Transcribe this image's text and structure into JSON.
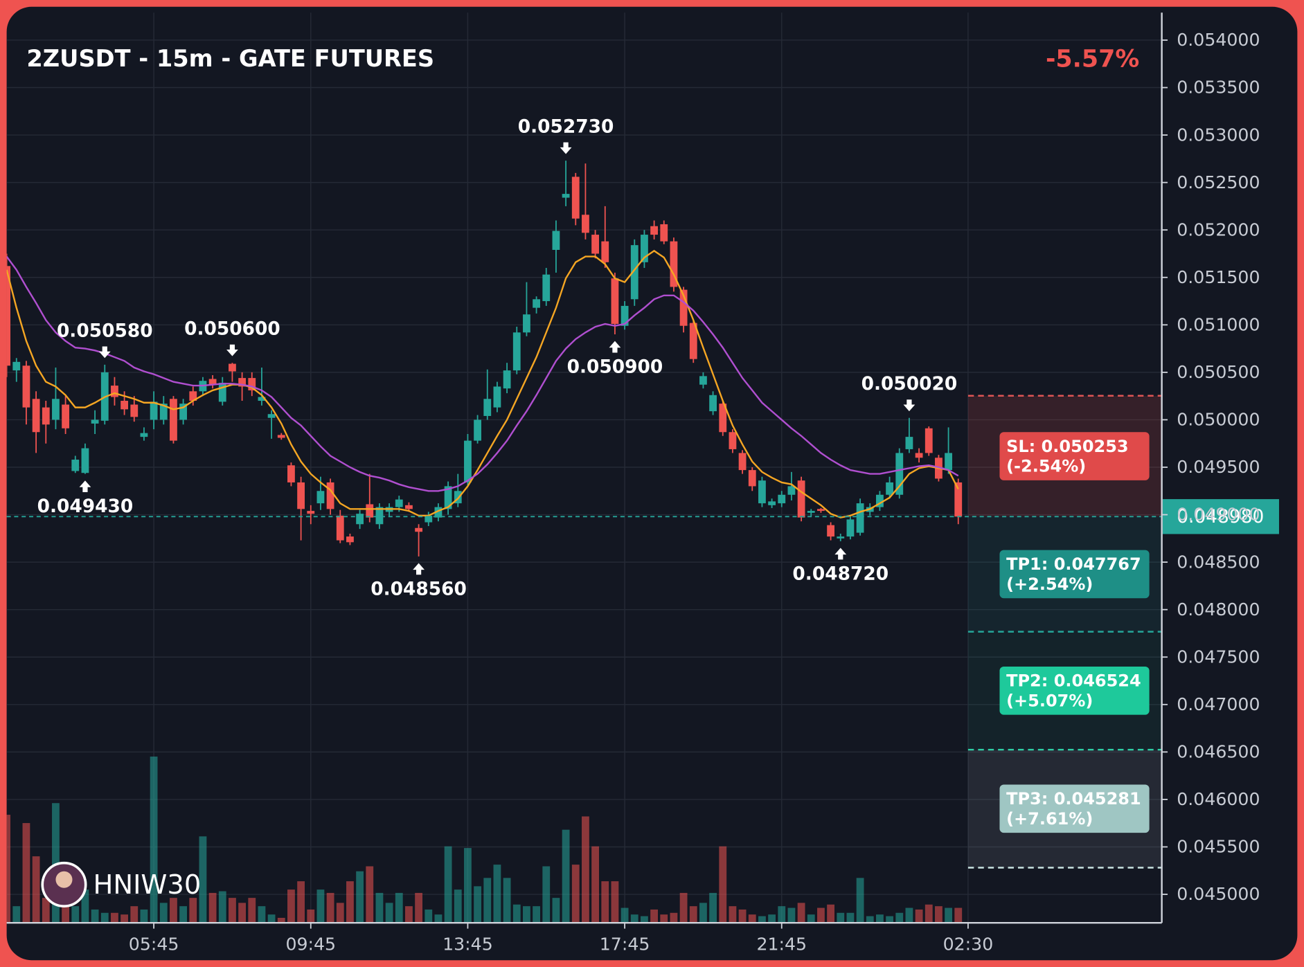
{
  "chart_data": {
    "type": "candlestick",
    "title": "2ZUSDT - 15m - GATE FUTURES",
    "change": "-5.57%",
    "watermark": "HNIW30",
    "up_color": "#26a69a",
    "down_color": "#ef5350",
    "xlim": [
      0,
      118
    ],
    "xticks": [
      {
        "value": 15,
        "label": "05:45"
      },
      {
        "value": 31,
        "label": "09:45"
      },
      {
        "value": 47,
        "label": "13:45"
      },
      {
        "value": 63,
        "label": "17:45"
      },
      {
        "value": 79,
        "label": "21:45"
      },
      {
        "value": 98,
        "label": "02:30"
      }
    ],
    "ylim": [
      0.0447,
      0.05429
    ],
    "yticks": [
      {
        "value": 0.045,
        "label": "0.045000"
      },
      {
        "value": 0.0455,
        "label": "0.045500"
      },
      {
        "value": 0.046,
        "label": "0.046000"
      },
      {
        "value": 0.0465,
        "label": "0.046500"
      },
      {
        "value": 0.047,
        "label": "0.047000"
      },
      {
        "value": 0.0475,
        "label": "0.047500"
      },
      {
        "value": 0.048,
        "label": "0.048000"
      },
      {
        "value": 0.0485,
        "label": "0.048500"
      },
      {
        "value": 0.049,
        "label": "0.049000"
      },
      {
        "value": 0.0495,
        "label": "0.049500"
      },
      {
        "value": 0.05,
        "label": "0.050000"
      },
      {
        "value": 0.0505,
        "label": "0.050500"
      },
      {
        "value": 0.051,
        "label": "0.051000"
      },
      {
        "value": 0.0515,
        "label": "0.051500"
      },
      {
        "value": 0.052,
        "label": "0.052000"
      },
      {
        "value": 0.0525,
        "label": "0.052500"
      },
      {
        "value": 0.053,
        "label": "0.053000"
      },
      {
        "value": 0.0535,
        "label": "0.053500"
      },
      {
        "value": 0.054,
        "label": "0.054000"
      }
    ],
    "grid": true,
    "open": [
      0.05162,
      0.05052,
      0.05057,
      0.05022,
      0.05013,
      0.05,
      0.05016,
      0.04946,
      0.04944,
      0.04996,
      0.04999,
      0.05036,
      0.0502,
      0.05016,
      0.04982,
      0.05,
      0.05,
      0.05022,
      0.05,
      0.0503,
      0.0503,
      0.05043,
      0.05019,
      0.05059,
      0.05044,
      0.05044,
      0.0502,
      0.05002,
      0.04984,
      0.04952,
      0.04934,
      0.04904,
      0.04912,
      0.04934,
      0.04899,
      0.04877,
      0.0489,
      0.04911,
      0.0489,
      0.04903,
      0.04908,
      0.0491,
      0.04886,
      0.04892,
      0.04897,
      0.04906,
      0.04912,
      0.04934,
      0.04978,
      0.05004,
      0.05013,
      0.05033,
      0.05052,
      0.05092,
      0.05118,
      0.05125,
      0.05179,
      0.05234,
      0.05256,
      0.05216,
      0.05195,
      0.05188,
      0.05149,
      0.05099,
      0.05127,
      0.05166,
      0.05204,
      0.05206,
      0.05188,
      0.05137,
      0.05102,
      0.05037,
      0.05009,
      0.05017,
      0.04987,
      0.04965,
      0.04947,
      0.04912,
      0.0491,
      0.04912,
      0.04921,
      0.04936,
      0.04902,
      0.04906,
      0.04889,
      0.04875,
      0.04877,
      0.04881,
      0.04903,
      0.04908,
      0.04921,
      0.04921,
      0.04969,
      0.04965,
      0.04991,
      0.0496,
      0.04947,
      0.04934
    ],
    "high": [
      0.05175,
      0.05065,
      0.05062,
      0.0503,
      0.0502,
      0.05055,
      0.05025,
      0.04962,
      0.04975,
      0.0501,
      0.05058,
      0.05045,
      0.0503,
      0.05025,
      0.04992,
      0.0503,
      0.05025,
      0.05025,
      0.05022,
      0.05035,
      0.05045,
      0.05047,
      0.05045,
      0.0506,
      0.0505,
      0.0505,
      0.05055,
      0.0501,
      0.04986,
      0.04955,
      0.0494,
      0.0491,
      0.0494,
      0.04938,
      0.04905,
      0.0488,
      0.04905,
      0.04943,
      0.04912,
      0.04912,
      0.0492,
      0.04913,
      0.0489,
      0.04903,
      0.04912,
      0.04935,
      0.04943,
      0.04985,
      0.05005,
      0.05053,
      0.0504,
      0.0506,
      0.05098,
      0.05145,
      0.0513,
      0.0516,
      0.0521,
      0.05273,
      0.0526,
      0.0527,
      0.052,
      0.05225,
      0.05155,
      0.05125,
      0.0519,
      0.052,
      0.0521,
      0.0521,
      0.05192,
      0.0514,
      0.05105,
      0.0505,
      0.0503,
      0.0502,
      0.0499,
      0.04968,
      0.0495,
      0.0494,
      0.04917,
      0.04925,
      0.04945,
      0.0494,
      0.04906,
      0.04907,
      0.04892,
      0.0488,
      0.04898,
      0.04917,
      0.04912,
      0.04925,
      0.0494,
      0.0497,
      0.05002,
      0.0497,
      0.04993,
      0.04963,
      0.04992,
      0.04938
    ],
    "low": [
      0.05045,
      0.0504,
      0.04995,
      0.04965,
      0.04975,
      0.0499,
      0.04985,
      0.04944,
      0.04943,
      0.04985,
      0.04995,
      0.05015,
      0.05005,
      0.04998,
      0.04978,
      0.0499,
      0.04995,
      0.04975,
      0.04995,
      0.05015,
      0.05025,
      0.05033,
      0.05015,
      0.0504,
      0.0502,
      0.05025,
      0.05015,
      0.0498,
      0.04979,
      0.0493,
      0.04873,
      0.0489,
      0.04905,
      0.049,
      0.0487,
      0.04868,
      0.04885,
      0.04892,
      0.04885,
      0.04898,
      0.04903,
      0.04903,
      0.04856,
      0.04888,
      0.04893,
      0.049,
      0.04908,
      0.0493,
      0.04975,
      0.05,
      0.05008,
      0.05028,
      0.05048,
      0.05088,
      0.05112,
      0.0512,
      0.05155,
      0.05225,
      0.05205,
      0.0519,
      0.0517,
      0.0516,
      0.0509,
      0.05095,
      0.0512,
      0.0516,
      0.0519,
      0.05185,
      0.05135,
      0.05092,
      0.0506,
      0.05033,
      0.05005,
      0.04983,
      0.04965,
      0.04943,
      0.04925,
      0.04908,
      0.04907,
      0.04908,
      0.04915,
      0.04893,
      0.04898,
      0.04902,
      0.04873,
      0.04872,
      0.04874,
      0.04878,
      0.04899,
      0.04904,
      0.04917,
      0.04917,
      0.04965,
      0.04955,
      0.04962,
      0.04935,
      0.04943,
      0.0489
    ],
    "close": [
      0.05057,
      0.05061,
      0.05013,
      0.04987,
      0.04995,
      0.05022,
      0.04991,
      0.04958,
      0.0497,
      0.05,
      0.0505,
      0.05024,
      0.05011,
      0.05003,
      0.04986,
      0.05019,
      0.05017,
      0.04978,
      0.05017,
      0.0502,
      0.05041,
      0.05037,
      0.05039,
      0.05051,
      0.05035,
      0.05031,
      0.05024,
      0.05006,
      0.04981,
      0.04934,
      0.04906,
      0.04901,
      0.04925,
      0.04906,
      0.04873,
      0.04871,
      0.04901,
      0.04897,
      0.04908,
      0.04908,
      0.04916,
      0.04906,
      0.04882,
      0.04899,
      0.04908,
      0.0493,
      0.04925,
      0.04978,
      0.05,
      0.05022,
      0.05035,
      0.05052,
      0.05092,
      0.05111,
      0.05127,
      0.05153,
      0.05199,
      0.05238,
      0.05212,
      0.05197,
      0.05175,
      0.05166,
      0.05101,
      0.0512,
      0.05184,
      0.05195,
      0.05195,
      0.05188,
      0.0514,
      0.05099,
      0.05064,
      0.05046,
      0.05026,
      0.04987,
      0.04969,
      0.04947,
      0.0493,
      0.04936,
      0.04914,
      0.04921,
      0.0493,
      0.04897,
      0.04904,
      0.04904,
      0.04877,
      0.04877,
      0.04895,
      0.04912,
      0.04908,
      0.04921,
      0.04934,
      0.04965,
      0.04982,
      0.0496,
      0.04965,
      0.04938,
      0.04965,
      0.04898
    ],
    "volume": [
      65,
      10,
      60,
      40,
      15,
      72,
      15,
      10,
      20,
      8,
      6,
      6,
      5,
      10,
      8,
      100,
      12,
      15,
      10,
      15,
      52,
      18,
      19,
      15,
      12,
      15,
      10,
      5,
      3,
      20,
      25,
      8,
      20,
      18,
      12,
      25,
      31,
      34,
      18,
      12,
      18,
      10,
      18,
      8,
      5,
      46,
      20,
      45,
      22,
      27,
      35,
      27,
      11,
      10,
      10,
      34,
      15,
      56,
      35,
      64,
      46,
      25,
      25,
      9,
      5,
      4,
      8,
      5,
      6,
      18,
      10,
      12,
      18,
      46,
      10,
      8,
      5,
      4,
      5,
      10,
      9,
      12,
      5,
      9,
      11,
      6,
      6,
      27,
      4,
      5,
      4,
      6,
      9,
      8,
      11,
      10,
      9,
      9
    ],
    "lines": [
      {
        "color": "#f5a623",
        "values": [
          0.05158,
          0.05118,
          0.05083,
          0.05057,
          0.0504,
          0.05035,
          0.05026,
          0.05013,
          0.05013,
          0.05018,
          0.05024,
          0.05028,
          0.05025,
          0.05022,
          0.05018,
          0.05018,
          0.05015,
          0.05011,
          0.05013,
          0.0502,
          0.05026,
          0.05031,
          0.05034,
          0.05037,
          0.05037,
          0.05034,
          0.05026,
          0.05013,
          0.04996,
          0.04974,
          0.04956,
          0.04943,
          0.04934,
          0.04926,
          0.04912,
          0.04906,
          0.04906,
          0.04906,
          0.04906,
          0.04906,
          0.04906,
          0.04904,
          0.04899,
          0.04899,
          0.04904,
          0.04908,
          0.04917,
          0.0493,
          0.04947,
          0.04965,
          0.04983,
          0.05,
          0.05022,
          0.05044,
          0.05066,
          0.05092,
          0.05118,
          0.05149,
          0.05166,
          0.05172,
          0.05172,
          0.05164,
          0.05149,
          0.05145,
          0.05158,
          0.05171,
          0.05178,
          0.05171,
          0.05153,
          0.05131,
          0.05105,
          0.05076,
          0.05048,
          0.0502,
          0.04994,
          0.04974,
          0.04956,
          0.04945,
          0.04939,
          0.04934,
          0.04932,
          0.04924,
          0.04917,
          0.0491,
          0.04901,
          0.04897,
          0.04899,
          0.04903,
          0.04906,
          0.04912,
          0.04918,
          0.0493,
          0.04943,
          0.04949,
          0.04951,
          0.04949,
          0.04947,
          0.04927
        ]
      },
      {
        "color": "#b04fd0",
        "values": [
          0.05172,
          0.05158,
          0.0514,
          0.05123,
          0.05105,
          0.05092,
          0.05083,
          0.05076,
          0.05075,
          0.05073,
          0.0507,
          0.05066,
          0.05062,
          0.05055,
          0.05051,
          0.05048,
          0.05044,
          0.0504,
          0.05038,
          0.05036,
          0.05036,
          0.05037,
          0.05038,
          0.05038,
          0.05037,
          0.05035,
          0.05031,
          0.05024,
          0.05013,
          0.05002,
          0.04994,
          0.04983,
          0.04972,
          0.04962,
          0.04956,
          0.0495,
          0.04945,
          0.04941,
          0.04939,
          0.04936,
          0.04932,
          0.04929,
          0.04927,
          0.04925,
          0.04925,
          0.04927,
          0.0493,
          0.04936,
          0.04943,
          0.04953,
          0.04965,
          0.04978,
          0.04994,
          0.05009,
          0.05026,
          0.05044,
          0.05062,
          0.05075,
          0.05085,
          0.05092,
          0.05098,
          0.05101,
          0.05099,
          0.05101,
          0.0511,
          0.05118,
          0.05127,
          0.05131,
          0.05131,
          0.05124,
          0.05115,
          0.05103,
          0.0509,
          0.05076,
          0.0506,
          0.05044,
          0.05031,
          0.05018,
          0.05009,
          0.05,
          0.04991,
          0.04983,
          0.04974,
          0.04965,
          0.04958,
          0.04952,
          0.04947,
          0.04945,
          0.04943,
          0.04943,
          0.04945,
          0.04947,
          0.04949,
          0.04951,
          0.04952,
          0.0495,
          0.04947,
          0.04941
        ]
      }
    ],
    "extremes": [
      {
        "x": 8,
        "value": 0.04943,
        "label": "0.049430",
        "kind": "low"
      },
      {
        "x": 10,
        "value": 0.05058,
        "label": "0.050580",
        "kind": "high"
      },
      {
        "x": 23,
        "value": 0.0506,
        "label": "0.050600",
        "kind": "high"
      },
      {
        "x": 42,
        "value": 0.04856,
        "label": "0.048560",
        "kind": "low"
      },
      {
        "x": 57,
        "value": 0.05273,
        "label": "0.052730",
        "kind": "high"
      },
      {
        "x": 62,
        "value": 0.0509,
        "label": "0.050900",
        "kind": "low"
      },
      {
        "x": 85,
        "value": 0.04872,
        "label": "0.048720",
        "kind": "low"
      },
      {
        "x": 92,
        "value": 0.05002,
        "label": "0.050020",
        "kind": "high"
      }
    ],
    "last_price": {
      "value": 0.04898,
      "label": "0.048980",
      "color": "#26a69a"
    },
    "levels": [
      {
        "value": 0.050253,
        "label": "SL: 0.050253",
        "change": "(-2.54%)",
        "color": "#e04a4a",
        "line": "#e05555",
        "zone": "rgba(239,83,80,0.16)"
      },
      {
        "value": 0.047767,
        "label": "TP1: 0.047767",
        "change": "(+2.54%)",
        "color": "#1e8f86",
        "line": "#26a69a",
        "zone": "rgba(38,166,154,0.10)"
      },
      {
        "value": 0.046524,
        "label": "TP2: 0.046524",
        "change": "(+5.07%)",
        "color": "#1ec99b",
        "line": "#2ad1a6",
        "zone": "rgba(38,200,160,0.07)"
      },
      {
        "value": 0.045281,
        "label": "TP3: 0.045281",
        "change": "(+7.61%)",
        "color": "#9fc6c3",
        "line": "#c9e4e2",
        "zone": "rgba(200,210,220,0.10)"
      }
    ]
  }
}
